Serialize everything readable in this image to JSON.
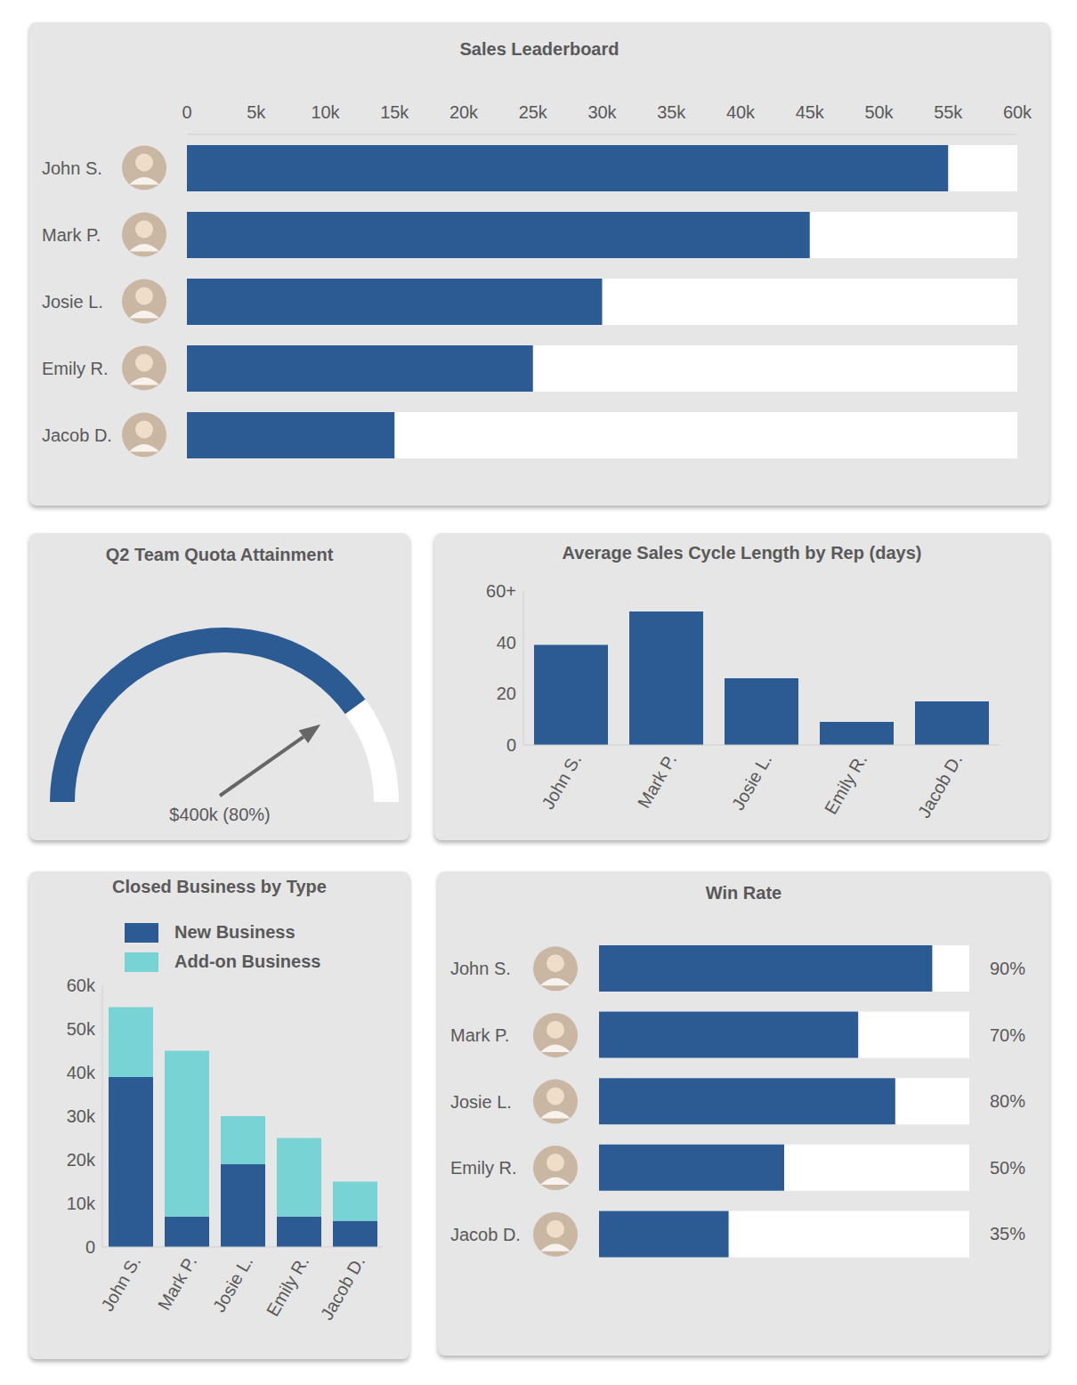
{
  "chart_data": [
    {
      "type": "bar",
      "title": "Sales Leaderboard",
      "orientation": "horizontal",
      "categories": [
        "John S.",
        "Mark P.",
        "Josie L.",
        "Emily R.",
        "Jacob D."
      ],
      "values": [
        55000,
        45000,
        30000,
        25000,
        15000
      ],
      "color": "#2b5b92",
      "xlim": [
        0,
        60000
      ],
      "xticks": [
        0,
        {
          "value": 5000,
          "label": "5k"
        },
        {
          "value": 10000,
          "label": "10k"
        },
        {
          "value": 15000,
          "label": "15k"
        },
        {
          "value": 20000,
          "label": "20k"
        },
        {
          "value": 25000,
          "label": "25k"
        },
        {
          "value": 30000,
          "label": "30k"
        },
        {
          "value": 35000,
          "label": "35k"
        },
        {
          "value": 40000,
          "label": "40k"
        },
        {
          "value": 45000,
          "label": "45k"
        },
        {
          "value": 50000,
          "label": "50k"
        },
        {
          "value": 55000,
          "label": "55k"
        },
        {
          "value": 60000,
          "label": "60k"
        }
      ]
    },
    {
      "type": "gauge",
      "title": "Q2 Team Quota Attainment",
      "values": [
        80
      ],
      "value_labels": [
        "$400k (80%)"
      ],
      "data_labels": true,
      "ylim": [
        0,
        100
      ],
      "color": "#2b5b92"
    },
    {
      "type": "bar",
      "title": "Average Sales Cycle Length by Rep (days)",
      "categories": [
        "John S.",
        "Mark P.",
        "Josie L.",
        "Emily R.",
        "Jacob D."
      ],
      "values": [
        39,
        52,
        26,
        9,
        17
      ],
      "color": "#2b5b92",
      "ylim": [
        0,
        60
      ],
      "yticks": [
        0,
        20,
        40,
        {
          "value": 60,
          "label": "60+"
        }
      ]
    },
    {
      "type": "bar",
      "title": "Closed Business by Type",
      "stacked": true,
      "legend": "top",
      "categories": [
        "John S.",
        "Mark P.",
        "Josie L.",
        "Emily R.",
        "Jacob D."
      ],
      "series": [
        {
          "name": "New Business",
          "color": "#2b5b92",
          "values": [
            39000,
            7000,
            19000,
            7000,
            6000
          ]
        },
        {
          "name": "Add-on Business",
          "color": "#78d3d4",
          "values": [
            16000,
            38000,
            11000,
            18000,
            9000
          ]
        }
      ],
      "ylim": [
        0,
        60000
      ],
      "yticks": [
        0,
        {
          "value": 10000,
          "label": "10k"
        },
        {
          "value": 20000,
          "label": "20k"
        },
        {
          "value": 30000,
          "label": "30k"
        },
        {
          "value": 40000,
          "label": "40k"
        },
        {
          "value": 50000,
          "label": "50k"
        },
        {
          "value": 60000,
          "label": "60k"
        }
      ]
    },
    {
      "type": "bar",
      "title": "Win Rate",
      "orientation": "horizontal",
      "categories": [
        "John S.",
        "Mark P.",
        "Josie L.",
        "Emily R.",
        "Jacob D."
      ],
      "values": [
        90,
        70,
        80,
        50,
        35
      ],
      "value_labels": [
        "90%",
        "70%",
        "80%",
        "50%",
        "35%"
      ],
      "data_labels": true,
      "xlim": [
        0,
        100
      ],
      "tick_labels": false,
      "color": "#2b5b92"
    }
  ]
}
